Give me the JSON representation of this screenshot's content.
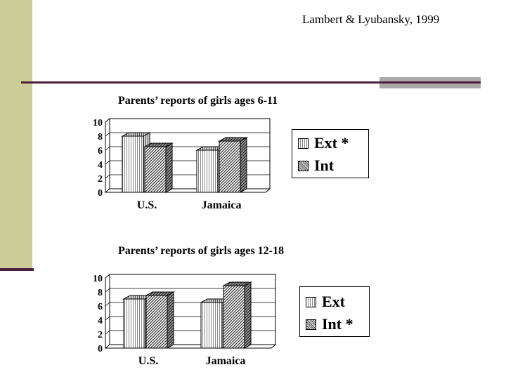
{
  "citation": "Lambert & Lyubansky, 1999",
  "colors": {
    "sidebar": "#cccc99",
    "rule": "#4d1f3a",
    "rule_gray": "#a9a9a9"
  },
  "chart_data": [
    {
      "type": "bar",
      "title": "Parents’ reports of girls ages 6-11",
      "categories": [
        "U.S.",
        "Jamaica"
      ],
      "series": [
        {
          "name": "Ext *",
          "values": [
            8,
            6
          ]
        },
        {
          "name": "Int",
          "values": [
            6.5,
            7.3
          ]
        }
      ],
      "ylim": [
        0,
        10
      ],
      "yticks": [
        "0",
        "2",
        "4",
        "6",
        "8",
        "10"
      ],
      "grid": true,
      "legend": "right",
      "style": "3d"
    },
    {
      "type": "bar",
      "title": "Parents’ reports of girls ages 12-18",
      "categories": [
        "U.S.",
        "Jamaica"
      ],
      "series": [
        {
          "name": "Ext",
          "values": [
            7,
            6.5
          ]
        },
        {
          "name": "Int *",
          "values": [
            7.5,
            8.9
          ]
        }
      ],
      "ylim": [
        0,
        10
      ],
      "yticks": [
        "0",
        "2",
        "4",
        "6",
        "8",
        "10"
      ],
      "grid": true,
      "legend": "right",
      "style": "3d"
    }
  ]
}
